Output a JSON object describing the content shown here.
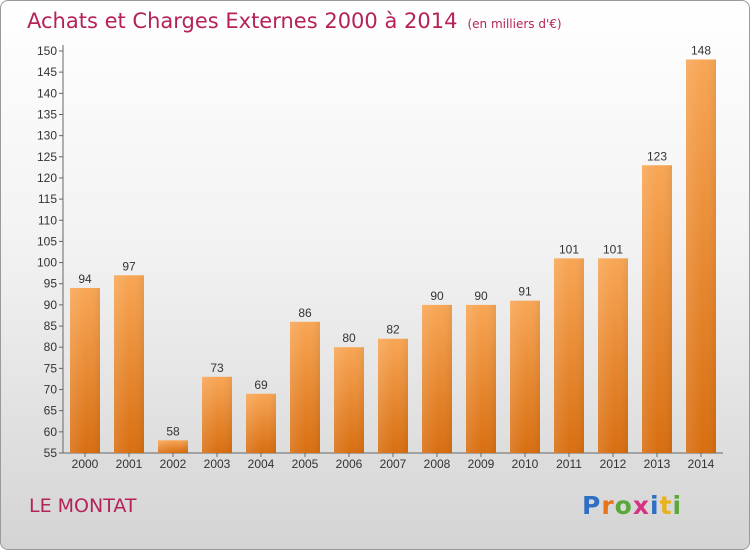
{
  "header": {
    "title": "Achats et Charges Externes 2000 à 2014",
    "unit": "(en milliers d'€)"
  },
  "footer": {
    "commune": "LE MONTAT",
    "logo": "Proxiti"
  },
  "colors": {
    "title": "#b5225a",
    "bar_top": "#f8a655",
    "bar_bottom": "#d86e10"
  },
  "chart_data": {
    "type": "bar",
    "title": "Achats et Charges Externes 2000 à 2014",
    "subtitle": "(en milliers d'€)",
    "categories": [
      "2000",
      "2001",
      "2002",
      "2003",
      "2004",
      "2005",
      "2006",
      "2007",
      "2008",
      "2009",
      "2010",
      "2011",
      "2012",
      "2013",
      "2014"
    ],
    "values": [
      94,
      97,
      58,
      73,
      69,
      86,
      80,
      82,
      90,
      90,
      91,
      101,
      101,
      123,
      148
    ],
    "ylim": [
      55,
      150
    ],
    "yticks": [
      55,
      60,
      65,
      70,
      75,
      80,
      85,
      90,
      95,
      100,
      105,
      110,
      115,
      120,
      125,
      130,
      135,
      140,
      145,
      150
    ],
    "grid": false,
    "data_labels": true
  }
}
